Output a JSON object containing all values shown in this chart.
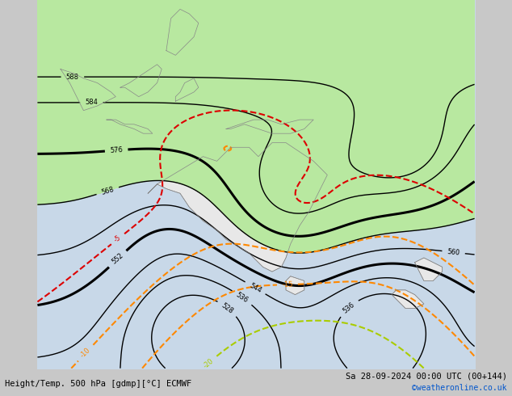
{
  "title_left": "Height/Temp. 500 hPa [gdmp][°C] ECMWF",
  "title_right": "Sa 28-09-2024 00:00 UTC (00+144)",
  "credit": "©weatheronline.co.uk",
  "bg_color": "#c8c8c8",
  "sea_color": "#c8d8e8",
  "land_color": "#e8e8e8",
  "green_fill": "#b8e8a0",
  "fig_width": 6.34,
  "fig_height": 4.9,
  "dpi": 100,
  "font_size_labels": 6,
  "font_size_title": 7.5
}
